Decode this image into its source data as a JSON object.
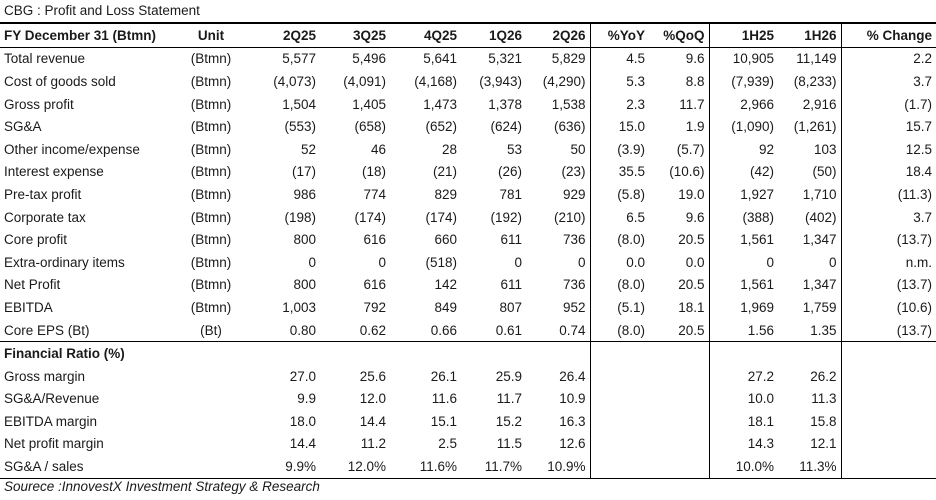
{
  "title": "CBG : Profit and Loss Statement",
  "header": [
    "FY December 31 (Btmn)",
    "Unit",
    "2Q25",
    "3Q25",
    "4Q25",
    "1Q26",
    "2Q26",
    "%YoY",
    "%QoQ",
    "1H25",
    "1H26",
    "% Change"
  ],
  "pl_rows": [
    [
      "Total revenue",
      "(Btmn)",
      "5,577",
      "5,496",
      "5,641",
      "5,321",
      "5,829",
      "4.5",
      "9.6",
      "10,905",
      "11,149",
      "2.2"
    ],
    [
      "Cost of goods sold",
      "(Btmn)",
      "(4,073)",
      "(4,091)",
      "(4,168)",
      "(3,943)",
      "(4,290)",
      "5.3",
      "8.8",
      "(7,939)",
      "(8,233)",
      "3.7"
    ],
    [
      "Gross profit",
      "(Btmn)",
      "1,504",
      "1,405",
      "1,473",
      "1,378",
      "1,538",
      "2.3",
      "11.7",
      "2,966",
      "2,916",
      "(1.7)"
    ],
    [
      "SG&A",
      "(Btmn)",
      "(553)",
      "(658)",
      "(652)",
      "(624)",
      "(636)",
      "15.0",
      "1.9",
      "(1,090)",
      "(1,261)",
      "15.7"
    ],
    [
      "Other income/expense",
      "(Btmn)",
      "52",
      "46",
      "28",
      "53",
      "50",
      "(3.9)",
      "(5.7)",
      "92",
      "103",
      "12.5"
    ],
    [
      "Interest expense",
      "(Btmn)",
      "(17)",
      "(18)",
      "(21)",
      "(26)",
      "(23)",
      "35.5",
      "(10.6)",
      "(42)",
      "(50)",
      "18.4"
    ],
    [
      "Pre-tax profit",
      "(Btmn)",
      "986",
      "774",
      "829",
      "781",
      "929",
      "(5.8)",
      "19.0",
      "1,927",
      "1,710",
      "(11.3)"
    ],
    [
      "Corporate tax",
      "(Btmn)",
      "(198)",
      "(174)",
      "(174)",
      "(192)",
      "(210)",
      "6.5",
      "9.6",
      "(388)",
      "(402)",
      "3.7"
    ],
    [
      "Core profit",
      "(Btmn)",
      "800",
      "616",
      "660",
      "611",
      "736",
      "(8.0)",
      "20.5",
      "1,561",
      "1,347",
      "(13.7)"
    ],
    [
      "Extra-ordinary items",
      "(Btmn)",
      "0",
      "0",
      "(518)",
      "0",
      "0",
      "0.0",
      "0.0",
      "0",
      "0",
      "n.m."
    ],
    [
      "Net Profit",
      "(Btmn)",
      "800",
      "616",
      "142",
      "611",
      "736",
      "(8.0)",
      "20.5",
      "1,561",
      "1,347",
      "(13.7)"
    ],
    [
      "EBITDA",
      "(Btmn)",
      "1,003",
      "792",
      "849",
      "807",
      "952",
      "(5.1)",
      "18.1",
      "1,969",
      "1,759",
      "(10.6)"
    ],
    [
      "Core EPS (Bt)",
      "(Bt)",
      "0.80",
      "0.62",
      "0.66",
      "0.61",
      "0.74",
      "(8.0)",
      "20.5",
      "1.56",
      "1.35",
      "(13.7)"
    ]
  ],
  "ratio_section_label": "Financial Ratio (%)",
  "ratio_rows": [
    [
      "Gross margin",
      "",
      "27.0",
      "25.6",
      "26.1",
      "25.9",
      "26.4",
      "",
      "",
      "27.2",
      "26.2",
      ""
    ],
    [
      "SG&A/Revenue",
      "",
      "9.9",
      "12.0",
      "11.6",
      "11.7",
      "10.9",
      "",
      "",
      "10.0",
      "11.3",
      ""
    ],
    [
      "EBITDA margin",
      "",
      "18.0",
      "14.4",
      "15.1",
      "15.2",
      "16.3",
      "",
      "",
      "18.1",
      "15.8",
      ""
    ],
    [
      "Net profit margin",
      "",
      "14.4",
      "11.2",
      "2.5",
      "11.5",
      "12.6",
      "",
      "",
      "14.3",
      "12.1",
      ""
    ],
    [
      "SG&A / sales",
      "",
      "9.9%",
      "12.0%",
      "11.6%",
      "11.7%",
      "10.9%",
      "",
      "",
      "10.0%",
      "11.3%",
      ""
    ]
  ],
  "source": "Sourece :InnovestX Investment Strategy & Research"
}
